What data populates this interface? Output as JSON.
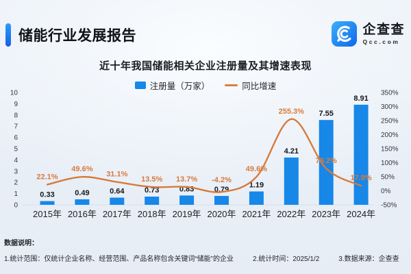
{
  "header": {
    "title": "储能行业发展报告"
  },
  "logo": {
    "name": "企查查",
    "domain": "Qcc.com"
  },
  "chart": {
    "title": "近十年我国储能相关企业注册量及其增速表现"
  },
  "legend": {
    "bars_label": "注册量（万家）",
    "line_label": "同比增速"
  },
  "chart_data": {
    "type": "bar+line",
    "title": "近十年我国储能相关企业注册量及其增速表现",
    "categories": [
      "2015年",
      "2016年",
      "2017年",
      "2018年",
      "2019年",
      "2020年",
      "2021年",
      "2022年",
      "2023年",
      "2024年"
    ],
    "series": [
      {
        "name": "注册量（万家）",
        "type": "bar",
        "axis": "left",
        "color": "#1787e8",
        "values": [
          0.33,
          0.49,
          0.64,
          0.73,
          0.83,
          0.79,
          1.19,
          4.21,
          7.55,
          8.91
        ]
      },
      {
        "name": "同比增速",
        "type": "line",
        "axis": "right",
        "color": "#d87a3a",
        "values": [
          22.1,
          49.6,
          31.1,
          13.5,
          13.7,
          -4.2,
          49.6,
          255.3,
          79.2,
          17.9
        ],
        "labels": [
          "22.1%",
          "49.6%",
          "31.1%",
          "13.5%",
          "13.7%",
          "-4.2%",
          "49.6%",
          "255.3%",
          "79.2%",
          "17.9%"
        ]
      }
    ],
    "left_axis": {
      "min": 0,
      "max": 10,
      "step": 1
    },
    "right_axis": {
      "min": -50,
      "max": 350,
      "step": 50,
      "suffix": "%"
    },
    "grid": false,
    "legend_position": "top"
  },
  "footer": {
    "heading": "数据说明：",
    "notes": [
      "1.统计范围：仅统计企业名称、经营范围、产品名称包含关键词“储能”的企业",
      "2.统计时间：2025/1/2",
      "3.数据来源：企查查"
    ]
  },
  "colors": {
    "accent": "#1677f0",
    "bar": "#1787e8",
    "line": "#d87a3a",
    "text": "#1c1e24"
  }
}
